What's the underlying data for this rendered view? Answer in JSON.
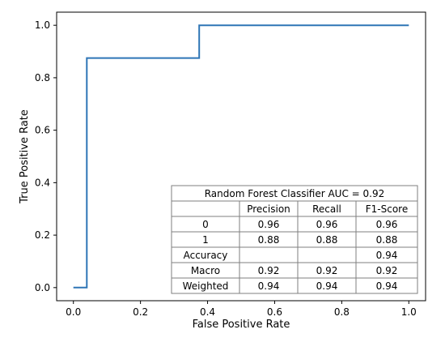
{
  "chart_data": {
    "type": "line",
    "xlabel": "False Positive Rate",
    "ylabel": "True Positive Rate",
    "xlim": [
      -0.05,
      1.05
    ],
    "ylim": [
      -0.05,
      1.05
    ],
    "x_ticks": [
      "0.0",
      "0.2",
      "0.4",
      "0.6",
      "0.8",
      "1.0"
    ],
    "y_ticks": [
      "0.0",
      "0.2",
      "0.4",
      "0.6",
      "0.8",
      "1.0"
    ],
    "x_tick_values": [
      0.0,
      0.2,
      0.4,
      0.6,
      0.8,
      1.0
    ],
    "y_tick_values": [
      0.0,
      0.2,
      0.4,
      0.6,
      0.8,
      1.0
    ],
    "grid": false,
    "series": [
      {
        "color": "#2e75b6",
        "x": [
          0.0,
          0.04,
          0.04,
          0.375,
          0.375,
          1.0
        ],
        "y": [
          0.0,
          0.0,
          0.875,
          0.875,
          1.0,
          1.0
        ]
      }
    ],
    "table": {
      "title": "Random Forest Classifier AUC = 0.92",
      "columns": [
        "",
        "Precision",
        "Recall",
        "F1-Score"
      ],
      "rows": [
        [
          "0",
          "0.96",
          "0.96",
          "0.96"
        ],
        [
          "1",
          "0.88",
          "0.88",
          "0.88"
        ],
        [
          "Accuracy",
          "",
          "",
          "0.94"
        ],
        [
          "Macro",
          "0.92",
          "0.92",
          "0.92"
        ],
        [
          "Weighted",
          "0.94",
          "0.94",
          "0.94"
        ]
      ]
    }
  }
}
